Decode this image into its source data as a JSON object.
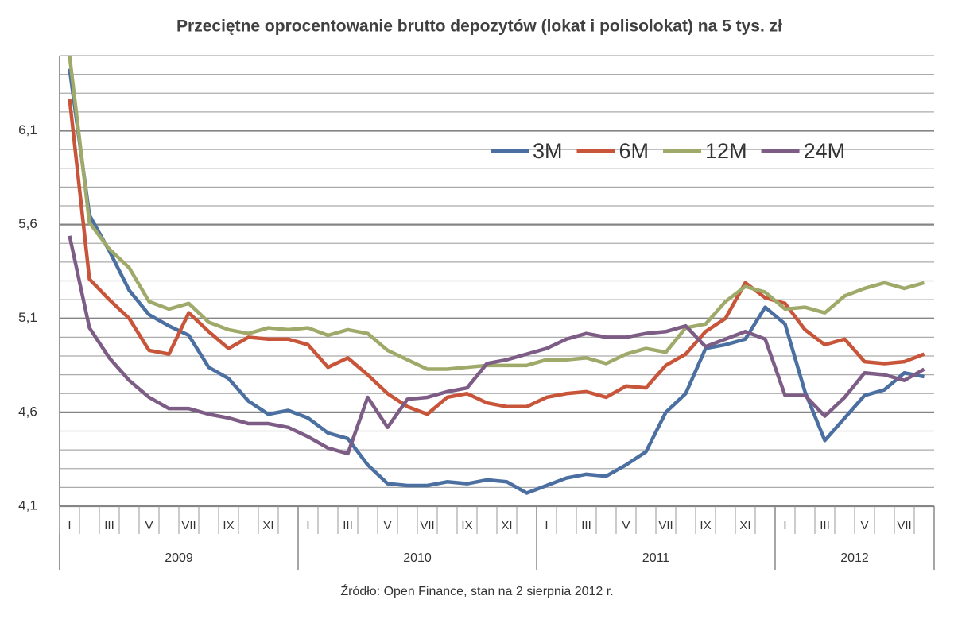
{
  "chart_data": {
    "type": "line",
    "title": "Przeciętne oprocentowanie brutto depozytów (lokat i polisolokat) na 5 tys. zł",
    "source": "Źródło: Open Finance, stan na 2 sierpnia 2012 r.",
    "categories": [
      "I",
      null,
      "III",
      null,
      "V",
      null,
      "VII",
      null,
      "IX",
      null,
      "XI",
      null,
      "I",
      null,
      "III",
      null,
      "V",
      null,
      "VII",
      null,
      "IX",
      null,
      "XI",
      null,
      "I",
      null,
      "III",
      null,
      "V",
      null,
      "VII",
      null,
      "IX",
      null,
      "XI",
      null,
      "I",
      null,
      "III",
      null,
      "V",
      null,
      "VII",
      null
    ],
    "year_groups": [
      {
        "label": "2009",
        "months": 12
      },
      {
        "label": "2010",
        "months": 12
      },
      {
        "label": "2011",
        "months": 12
      },
      {
        "label": "2012",
        "months": 8
      }
    ],
    "ylim": [
      4.1,
      6.5
    ],
    "yticks": [
      {
        "value": 4.1,
        "label": "4,1"
      },
      {
        "value": 4.6,
        "label": "4,6"
      },
      {
        "value": 5.1,
        "label": "5,1"
      },
      {
        "value": 5.6,
        "label": "5,6"
      },
      {
        "value": 6.1,
        "label": "6,1"
      }
    ],
    "minor_yticks": [
      4.2,
      4.3,
      4.4,
      4.5,
      4.7,
      4.8,
      4.9,
      5.0,
      5.2,
      5.3,
      5.4,
      5.5,
      5.7,
      5.8,
      5.9,
      6.0,
      6.2,
      6.3,
      6.4,
      6.5
    ],
    "grid": true,
    "legend": "upper right",
    "series": [
      {
        "name": "3M",
        "color": "#4a6fa0",
        "values": [
          6.43,
          5.65,
          5.46,
          5.25,
          5.12,
          5.06,
          5.01,
          4.84,
          4.78,
          4.66,
          4.59,
          4.61,
          4.57,
          4.49,
          4.46,
          4.32,
          4.22,
          4.21,
          4.21,
          4.23,
          4.22,
          4.24,
          4.23,
          4.17,
          4.21,
          4.25,
          4.27,
          4.26,
          4.32,
          4.39,
          4.6,
          4.7,
          4.94,
          4.96,
          4.99,
          5.16,
          5.07,
          4.71,
          4.45,
          4.57,
          4.69,
          4.72,
          4.81,
          4.79
        ]
      },
      {
        "name": "6M",
        "color": "#c8553a",
        "values": [
          6.27,
          5.31,
          5.2,
          5.1,
          4.93,
          4.91,
          5.13,
          5.03,
          4.94,
          5.0,
          4.99,
          4.99,
          4.96,
          4.84,
          4.89,
          4.8,
          4.7,
          4.63,
          4.59,
          4.68,
          4.7,
          4.65,
          4.63,
          4.63,
          4.68,
          4.7,
          4.71,
          4.68,
          4.74,
          4.73,
          4.85,
          4.91,
          5.03,
          5.1,
          5.29,
          5.21,
          5.18,
          5.04,
          4.96,
          4.99,
          4.87,
          4.86,
          4.87,
          4.91
        ]
      },
      {
        "name": "12M",
        "color": "#9faa6a",
        "values": [
          6.5,
          5.61,
          5.47,
          5.37,
          5.19,
          5.15,
          5.18,
          5.08,
          5.04,
          5.02,
          5.05,
          5.04,
          5.05,
          5.01,
          5.04,
          5.02,
          4.93,
          4.88,
          4.83,
          4.83,
          4.84,
          4.85,
          4.85,
          4.85,
          4.88,
          4.88,
          4.89,
          4.86,
          4.91,
          4.94,
          4.92,
          5.05,
          5.07,
          5.19,
          5.27,
          5.24,
          5.15,
          5.16,
          5.13,
          5.22,
          5.26,
          5.29,
          5.26,
          5.29
        ]
      },
      {
        "name": "24M",
        "color": "#7d5c85",
        "values": [
          5.54,
          5.05,
          4.89,
          4.77,
          4.68,
          4.62,
          4.62,
          4.59,
          4.57,
          4.54,
          4.54,
          4.52,
          4.47,
          4.41,
          4.38,
          4.68,
          4.52,
          4.67,
          4.68,
          4.71,
          4.73,
          4.86,
          4.88,
          4.91,
          4.94,
          4.99,
          5.02,
          5.0,
          5.0,
          5.02,
          5.03,
          5.06,
          4.95,
          4.99,
          5.03,
          4.99,
          4.69,
          4.69,
          4.58,
          4.68,
          4.81,
          4.8,
          4.77,
          4.83
        ]
      }
    ]
  }
}
